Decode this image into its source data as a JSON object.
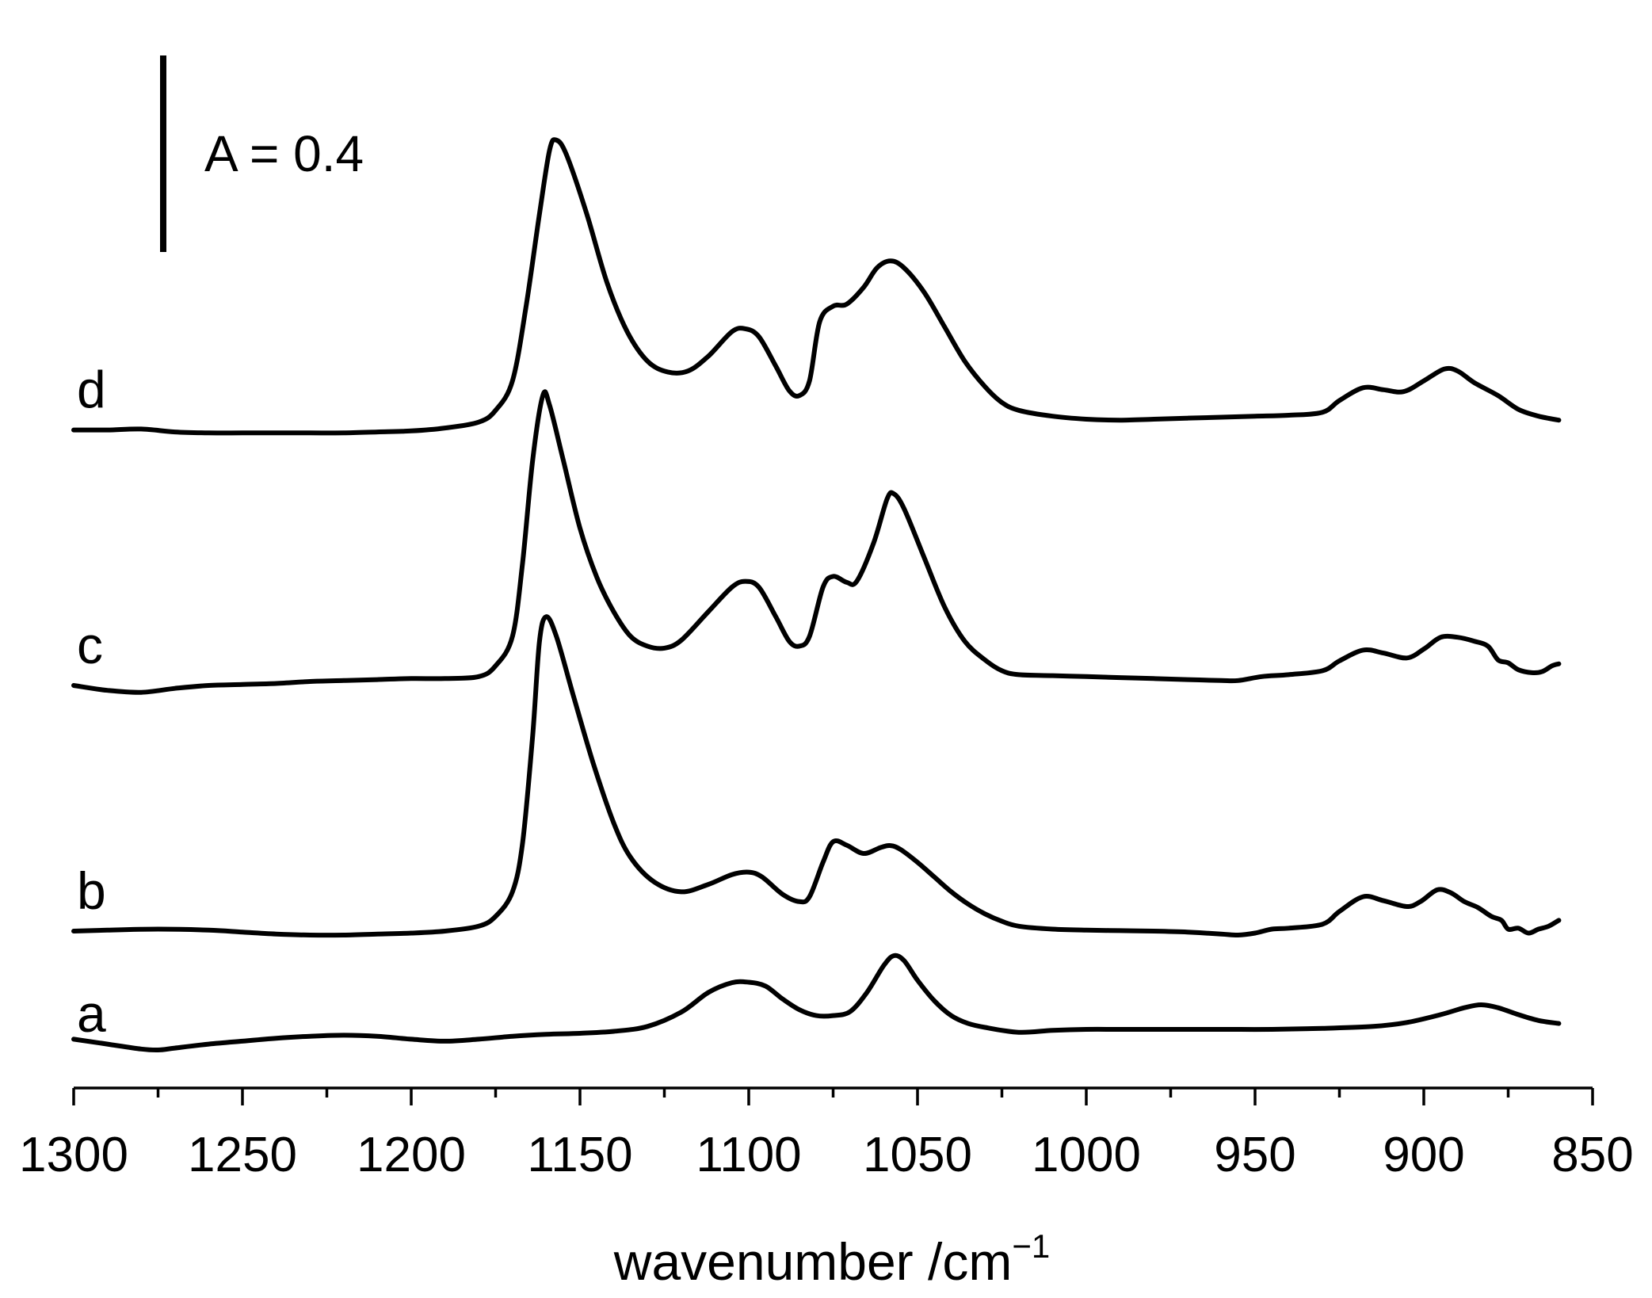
{
  "chart_data": {
    "type": "line",
    "title": "",
    "xlabel": "wavenumber /cm",
    "xlabel_sup": "−1",
    "ylabel": "",
    "xlim": [
      1300,
      850
    ],
    "x_reversed": true,
    "x_ticks": [
      "1300",
      "1250",
      "1200",
      "1150",
      "1100",
      "1050",
      "1000",
      "950",
      "900",
      "850"
    ],
    "grid": false,
    "scale_bar": {
      "label": "A = 0.4",
      "absorbance": 0.4
    },
    "series": [
      {
        "name": "a",
        "offset": 0.0,
        "points": [
          [
            1300,
            0.03
          ],
          [
            1290,
            0.02
          ],
          [
            1280,
            0.01
          ],
          [
            1275,
            0.008
          ],
          [
            1270,
            0.012
          ],
          [
            1260,
            0.02
          ],
          [
            1250,
            0.026
          ],
          [
            1240,
            0.032
          ],
          [
            1230,
            0.036
          ],
          [
            1220,
            0.038
          ],
          [
            1210,
            0.036
          ],
          [
            1200,
            0.03
          ],
          [
            1190,
            0.026
          ],
          [
            1180,
            0.03
          ],
          [
            1170,
            0.036
          ],
          [
            1160,
            0.04
          ],
          [
            1150,
            0.042
          ],
          [
            1140,
            0.046
          ],
          [
            1130,
            0.056
          ],
          [
            1120,
            0.085
          ],
          [
            1112,
            0.125
          ],
          [
            1105,
            0.145
          ],
          [
            1100,
            0.146
          ],
          [
            1095,
            0.138
          ],
          [
            1090,
            0.112
          ],
          [
            1085,
            0.09
          ],
          [
            1080,
            0.078
          ],
          [
            1075,
            0.078
          ],
          [
            1070,
            0.086
          ],
          [
            1065,
            0.125
          ],
          [
            1060,
            0.18
          ],
          [
            1057,
            0.2
          ],
          [
            1054,
            0.19
          ],
          [
            1050,
            0.15
          ],
          [
            1045,
            0.108
          ],
          [
            1040,
            0.078
          ],
          [
            1035,
            0.062
          ],
          [
            1030,
            0.054
          ],
          [
            1020,
            0.044
          ],
          [
            1010,
            0.048
          ],
          [
            1000,
            0.05
          ],
          [
            990,
            0.05
          ],
          [
            975,
            0.05
          ],
          [
            960,
            0.05
          ],
          [
            945,
            0.05
          ],
          [
            930,
            0.052
          ],
          [
            915,
            0.056
          ],
          [
            905,
            0.064
          ],
          [
            895,
            0.08
          ],
          [
            888,
            0.094
          ],
          [
            883,
            0.1
          ],
          [
            878,
            0.094
          ],
          [
            872,
            0.08
          ],
          [
            866,
            0.068
          ],
          [
            860,
            0.062
          ]
        ]
      },
      {
        "name": "b",
        "offset": 0.25,
        "points": [
          [
            1300,
            0.0
          ],
          [
            1290,
            0.002
          ],
          [
            1275,
            0.004
          ],
          [
            1260,
            0.002
          ],
          [
            1250,
            -0.002
          ],
          [
            1240,
            -0.006
          ],
          [
            1230,
            -0.008
          ],
          [
            1220,
            -0.008
          ],
          [
            1210,
            -0.006
          ],
          [
            1200,
            -0.004
          ],
          [
            1190,
            0.0
          ],
          [
            1180,
            0.01
          ],
          [
            1175,
            0.03
          ],
          [
            1170,
            0.08
          ],
          [
            1167,
            0.18
          ],
          [
            1164,
            0.4
          ],
          [
            1162,
            0.59
          ],
          [
            1160,
            0.64
          ],
          [
            1157,
            0.6
          ],
          [
            1152,
            0.48
          ],
          [
            1146,
            0.34
          ],
          [
            1140,
            0.22
          ],
          [
            1135,
            0.15
          ],
          [
            1128,
            0.1
          ],
          [
            1120,
            0.08
          ],
          [
            1112,
            0.095
          ],
          [
            1105,
            0.115
          ],
          [
            1100,
            0.12
          ],
          [
            1096,
            0.11
          ],
          [
            1090,
            0.075
          ],
          [
            1085,
            0.06
          ],
          [
            1082,
            0.07
          ],
          [
            1078,
            0.14
          ],
          [
            1075,
            0.182
          ],
          [
            1071,
            0.175
          ],
          [
            1066,
            0.158
          ],
          [
            1061,
            0.17
          ],
          [
            1058,
            0.174
          ],
          [
            1055,
            0.166
          ],
          [
            1050,
            0.14
          ],
          [
            1045,
            0.11
          ],
          [
            1040,
            0.08
          ],
          [
            1035,
            0.055
          ],
          [
            1030,
            0.035
          ],
          [
            1025,
            0.02
          ],
          [
            1020,
            0.01
          ],
          [
            1010,
            0.004
          ],
          [
            1000,
            0.002
          ],
          [
            990,
            0.001
          ],
          [
            980,
            0.0
          ],
          [
            970,
            -0.002
          ],
          [
            960,
            -0.006
          ],
          [
            955,
            -0.008
          ],
          [
            950,
            -0.004
          ],
          [
            945,
            0.004
          ],
          [
            940,
            0.006
          ],
          [
            930,
            0.014
          ],
          [
            925,
            0.04
          ],
          [
            918,
            0.07
          ],
          [
            912,
            0.062
          ],
          [
            905,
            0.05
          ],
          [
            901,
            0.06
          ],
          [
            896,
            0.084
          ],
          [
            892,
            0.078
          ],
          [
            888,
            0.06
          ],
          [
            884,
            0.048
          ],
          [
            880,
            0.03
          ],
          [
            877,
            0.022
          ],
          [
            875,
            0.004
          ],
          [
            872,
            0.006
          ],
          [
            869,
            -0.004
          ],
          [
            866,
            0.004
          ],
          [
            863,
            0.01
          ],
          [
            860,
            0.022
          ]
        ]
      },
      {
        "name": "c",
        "offset": 0.75,
        "points": [
          [
            1300,
            0.0
          ],
          [
            1290,
            -0.01
          ],
          [
            1280,
            -0.014
          ],
          [
            1270,
            -0.006
          ],
          [
            1260,
            0.0
          ],
          [
            1250,
            0.002
          ],
          [
            1240,
            0.004
          ],
          [
            1230,
            0.008
          ],
          [
            1220,
            0.01
          ],
          [
            1210,
            0.012
          ],
          [
            1200,
            0.014
          ],
          [
            1190,
            0.014
          ],
          [
            1180,
            0.018
          ],
          [
            1175,
            0.04
          ],
          [
            1170,
            0.1
          ],
          [
            1167,
            0.25
          ],
          [
            1164,
            0.46
          ],
          [
            1161,
            0.59
          ],
          [
            1159,
            0.57
          ],
          [
            1155,
            0.46
          ],
          [
            1150,
            0.32
          ],
          [
            1145,
            0.22
          ],
          [
            1140,
            0.15
          ],
          [
            1135,
            0.1
          ],
          [
            1130,
            0.08
          ],
          [
            1125,
            0.076
          ],
          [
            1120,
            0.092
          ],
          [
            1112,
            0.15
          ],
          [
            1105,
            0.2
          ],
          [
            1101,
            0.212
          ],
          [
            1097,
            0.2
          ],
          [
            1092,
            0.14
          ],
          [
            1088,
            0.09
          ],
          [
            1085,
            0.08
          ],
          [
            1082,
            0.1
          ],
          [
            1078,
            0.2
          ],
          [
            1075,
            0.222
          ],
          [
            1071,
            0.21
          ],
          [
            1068,
            0.212
          ],
          [
            1063,
            0.29
          ],
          [
            1059,
            0.38
          ],
          [
            1057,
            0.39
          ],
          [
            1054,
            0.36
          ],
          [
            1048,
            0.26
          ],
          [
            1042,
            0.16
          ],
          [
            1036,
            0.09
          ],
          [
            1030,
            0.052
          ],
          [
            1025,
            0.03
          ],
          [
            1020,
            0.022
          ],
          [
            1010,
            0.02
          ],
          [
            1000,
            0.018
          ],
          [
            990,
            0.016
          ],
          [
            980,
            0.014
          ],
          [
            970,
            0.012
          ],
          [
            960,
            0.01
          ],
          [
            955,
            0.01
          ],
          [
            948,
            0.018
          ],
          [
            940,
            0.022
          ],
          [
            930,
            0.03
          ],
          [
            925,
            0.05
          ],
          [
            918,
            0.072
          ],
          [
            912,
            0.066
          ],
          [
            905,
            0.056
          ],
          [
            900,
            0.074
          ],
          [
            895,
            0.098
          ],
          [
            890,
            0.098
          ],
          [
            885,
            0.09
          ],
          [
            881,
            0.08
          ],
          [
            878,
            0.052
          ],
          [
            875,
            0.046
          ],
          [
            872,
            0.032
          ],
          [
            868,
            0.026
          ],
          [
            865,
            0.028
          ],
          [
            862,
            0.04
          ],
          [
            860,
            0.044
          ]
        ]
      },
      {
        "name": "d",
        "offset": 1.27,
        "points": [
          [
            1300,
            0.0
          ],
          [
            1290,
            0.0
          ],
          [
            1280,
            0.002
          ],
          [
            1270,
            -0.004
          ],
          [
            1260,
            -0.006
          ],
          [
            1250,
            -0.006
          ],
          [
            1240,
            -0.006
          ],
          [
            1230,
            -0.006
          ],
          [
            1220,
            -0.006
          ],
          [
            1210,
            -0.004
          ],
          [
            1200,
            -0.002
          ],
          [
            1190,
            0.004
          ],
          [
            1180,
            0.016
          ],
          [
            1175,
            0.04
          ],
          [
            1170,
            0.1
          ],
          [
            1166,
            0.25
          ],
          [
            1162,
            0.44
          ],
          [
            1159,
            0.57
          ],
          [
            1157,
            0.59
          ],
          [
            1154,
            0.56
          ],
          [
            1148,
            0.44
          ],
          [
            1142,
            0.3
          ],
          [
            1136,
            0.2
          ],
          [
            1130,
            0.14
          ],
          [
            1124,
            0.118
          ],
          [
            1118,
            0.12
          ],
          [
            1112,
            0.15
          ],
          [
            1105,
            0.2
          ],
          [
            1101,
            0.206
          ],
          [
            1097,
            0.19
          ],
          [
            1092,
            0.13
          ],
          [
            1088,
            0.08
          ],
          [
            1085,
            0.07
          ],
          [
            1082,
            0.1
          ],
          [
            1079,
            0.22
          ],
          [
            1075,
            0.252
          ],
          [
            1071,
            0.256
          ],
          [
            1066,
            0.29
          ],
          [
            1062,
            0.33
          ],
          [
            1058,
            0.344
          ],
          [
            1054,
            0.33
          ],
          [
            1048,
            0.28
          ],
          [
            1042,
            0.21
          ],
          [
            1036,
            0.14
          ],
          [
            1030,
            0.088
          ],
          [
            1025,
            0.056
          ],
          [
            1020,
            0.04
          ],
          [
            1010,
            0.028
          ],
          [
            1000,
            0.022
          ],
          [
            990,
            0.02
          ],
          [
            980,
            0.022
          ],
          [
            970,
            0.024
          ],
          [
            960,
            0.026
          ],
          [
            950,
            0.028
          ],
          [
            940,
            0.03
          ],
          [
            930,
            0.036
          ],
          [
            925,
            0.06
          ],
          [
            918,
            0.086
          ],
          [
            912,
            0.082
          ],
          [
            906,
            0.078
          ],
          [
            900,
            0.1
          ],
          [
            894,
            0.124
          ],
          [
            890,
            0.12
          ],
          [
            885,
            0.096
          ],
          [
            878,
            0.07
          ],
          [
            872,
            0.042
          ],
          [
            866,
            0.028
          ],
          [
            860,
            0.02
          ]
        ]
      }
    ]
  }
}
